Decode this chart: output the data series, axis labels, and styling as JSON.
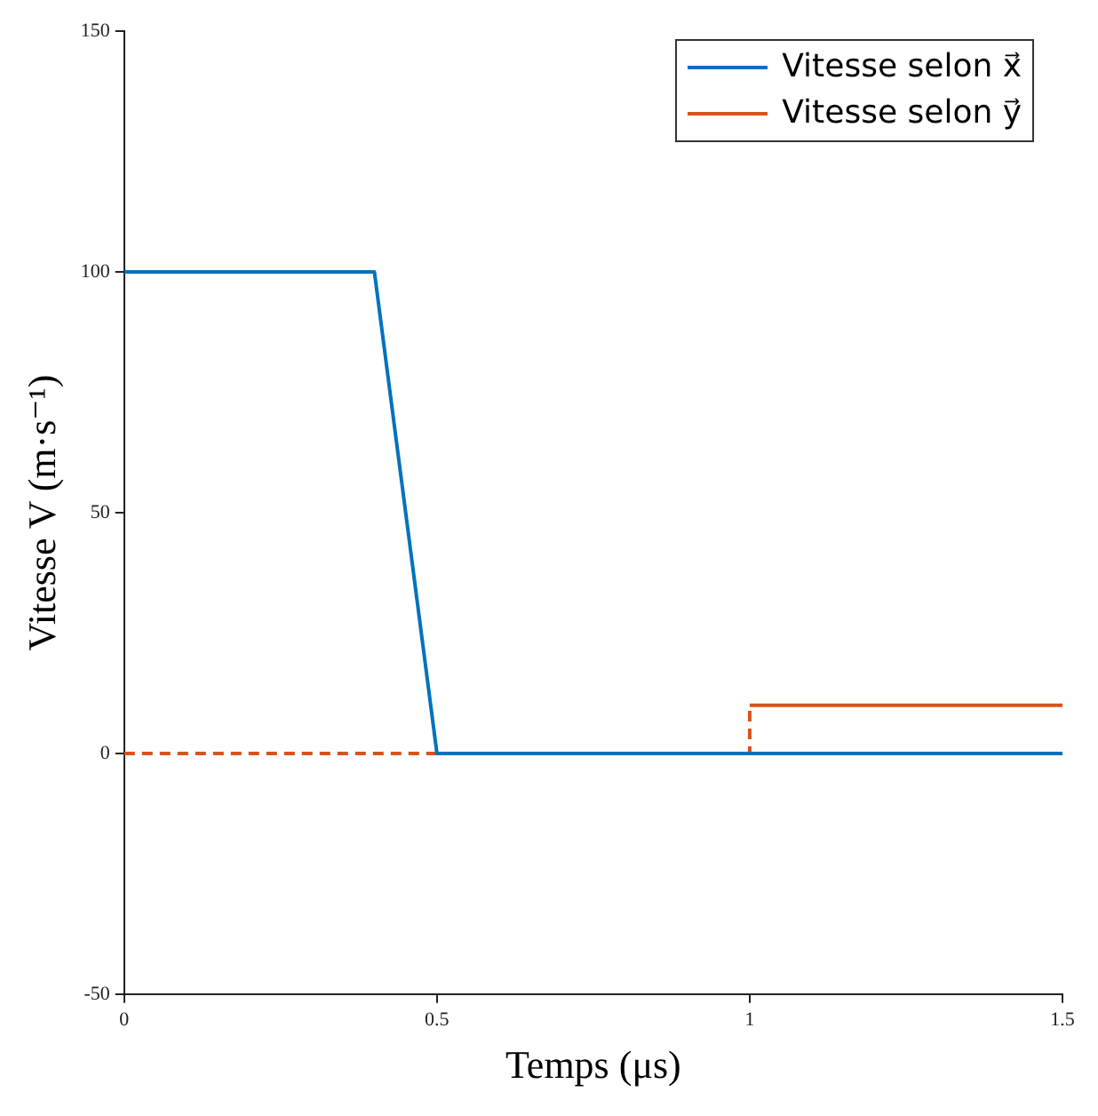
{
  "chart_data": {
    "type": "line",
    "xlabel": "Temps (μs)",
    "ylabel": "Vitesse V (m·s⁻¹)",
    "xlim": [
      0,
      1.5
    ],
    "xticks": [
      0,
      0.5,
      1,
      1.5
    ],
    "ylim": [
      -50,
      150
    ],
    "yticks": [
      -50,
      0,
      50,
      100,
      150
    ],
    "grid": false,
    "legend": "top right",
    "marker": "none",
    "series": [
      {
        "name": "Vitesse selon x⃗",
        "color": "#0072bd",
        "x": [
          0,
          0.4,
          0.5,
          1.5
        ],
        "values": [
          100,
          100,
          0,
          0
        ],
        "line_style": "solid"
      },
      {
        "name": "Vitesse selon y⃗",
        "color": "#d95319",
        "x": [
          1,
          1.5
        ],
        "values": [
          10,
          10
        ],
        "line_style": "solid"
      },
      {
        "color": "#d95319",
        "x": [
          0,
          1,
          1
        ],
        "values": [
          0,
          0,
          10
        ],
        "line_style": "dashed"
      }
    ]
  }
}
